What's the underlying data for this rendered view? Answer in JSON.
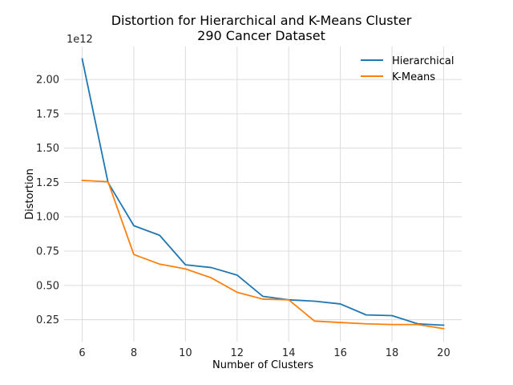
{
  "chart_data": {
    "type": "line",
    "title": "Distortion for Hierarchical and K-Means Cluster",
    "subtitle": "290 Cancer Dataset",
    "xlabel": "Number of Clusters",
    "ylabel": "Distortion",
    "y_offset_label": "1e12",
    "x": [
      6,
      7,
      8,
      9,
      10,
      11,
      12,
      13,
      14,
      15,
      16,
      17,
      18,
      19,
      20
    ],
    "xlim": [
      5.3,
      20.7
    ],
    "ylim": [
      0.09,
      2.24
    ],
    "x_ticks": [
      6,
      8,
      10,
      12,
      14,
      16,
      18,
      20
    ],
    "y_ticks": [
      0.25,
      0.5,
      0.75,
      1.0,
      1.25,
      1.5,
      1.75,
      2.0
    ],
    "y_tick_labels": [
      "0.25",
      "0.50",
      "0.75",
      "1.00",
      "1.25",
      "1.50",
      "1.75",
      "2.00"
    ],
    "grid": true,
    "legend_position": "top-right",
    "series": [
      {
        "name": "Hierarchical",
        "color": "#1f77b4",
        "values": [
          2.15,
          1.25,
          0.935,
          0.865,
          0.65,
          0.63,
          0.575,
          0.42,
          0.395,
          0.385,
          0.365,
          0.285,
          0.28,
          0.22,
          0.21
        ]
      },
      {
        "name": "K-Means",
        "color": "#ff7f0e",
        "values": [
          1.265,
          1.255,
          0.725,
          0.655,
          0.62,
          0.555,
          0.45,
          0.4,
          0.395,
          0.24,
          0.23,
          0.22,
          0.215,
          0.215,
          0.185
        ]
      }
    ]
  }
}
